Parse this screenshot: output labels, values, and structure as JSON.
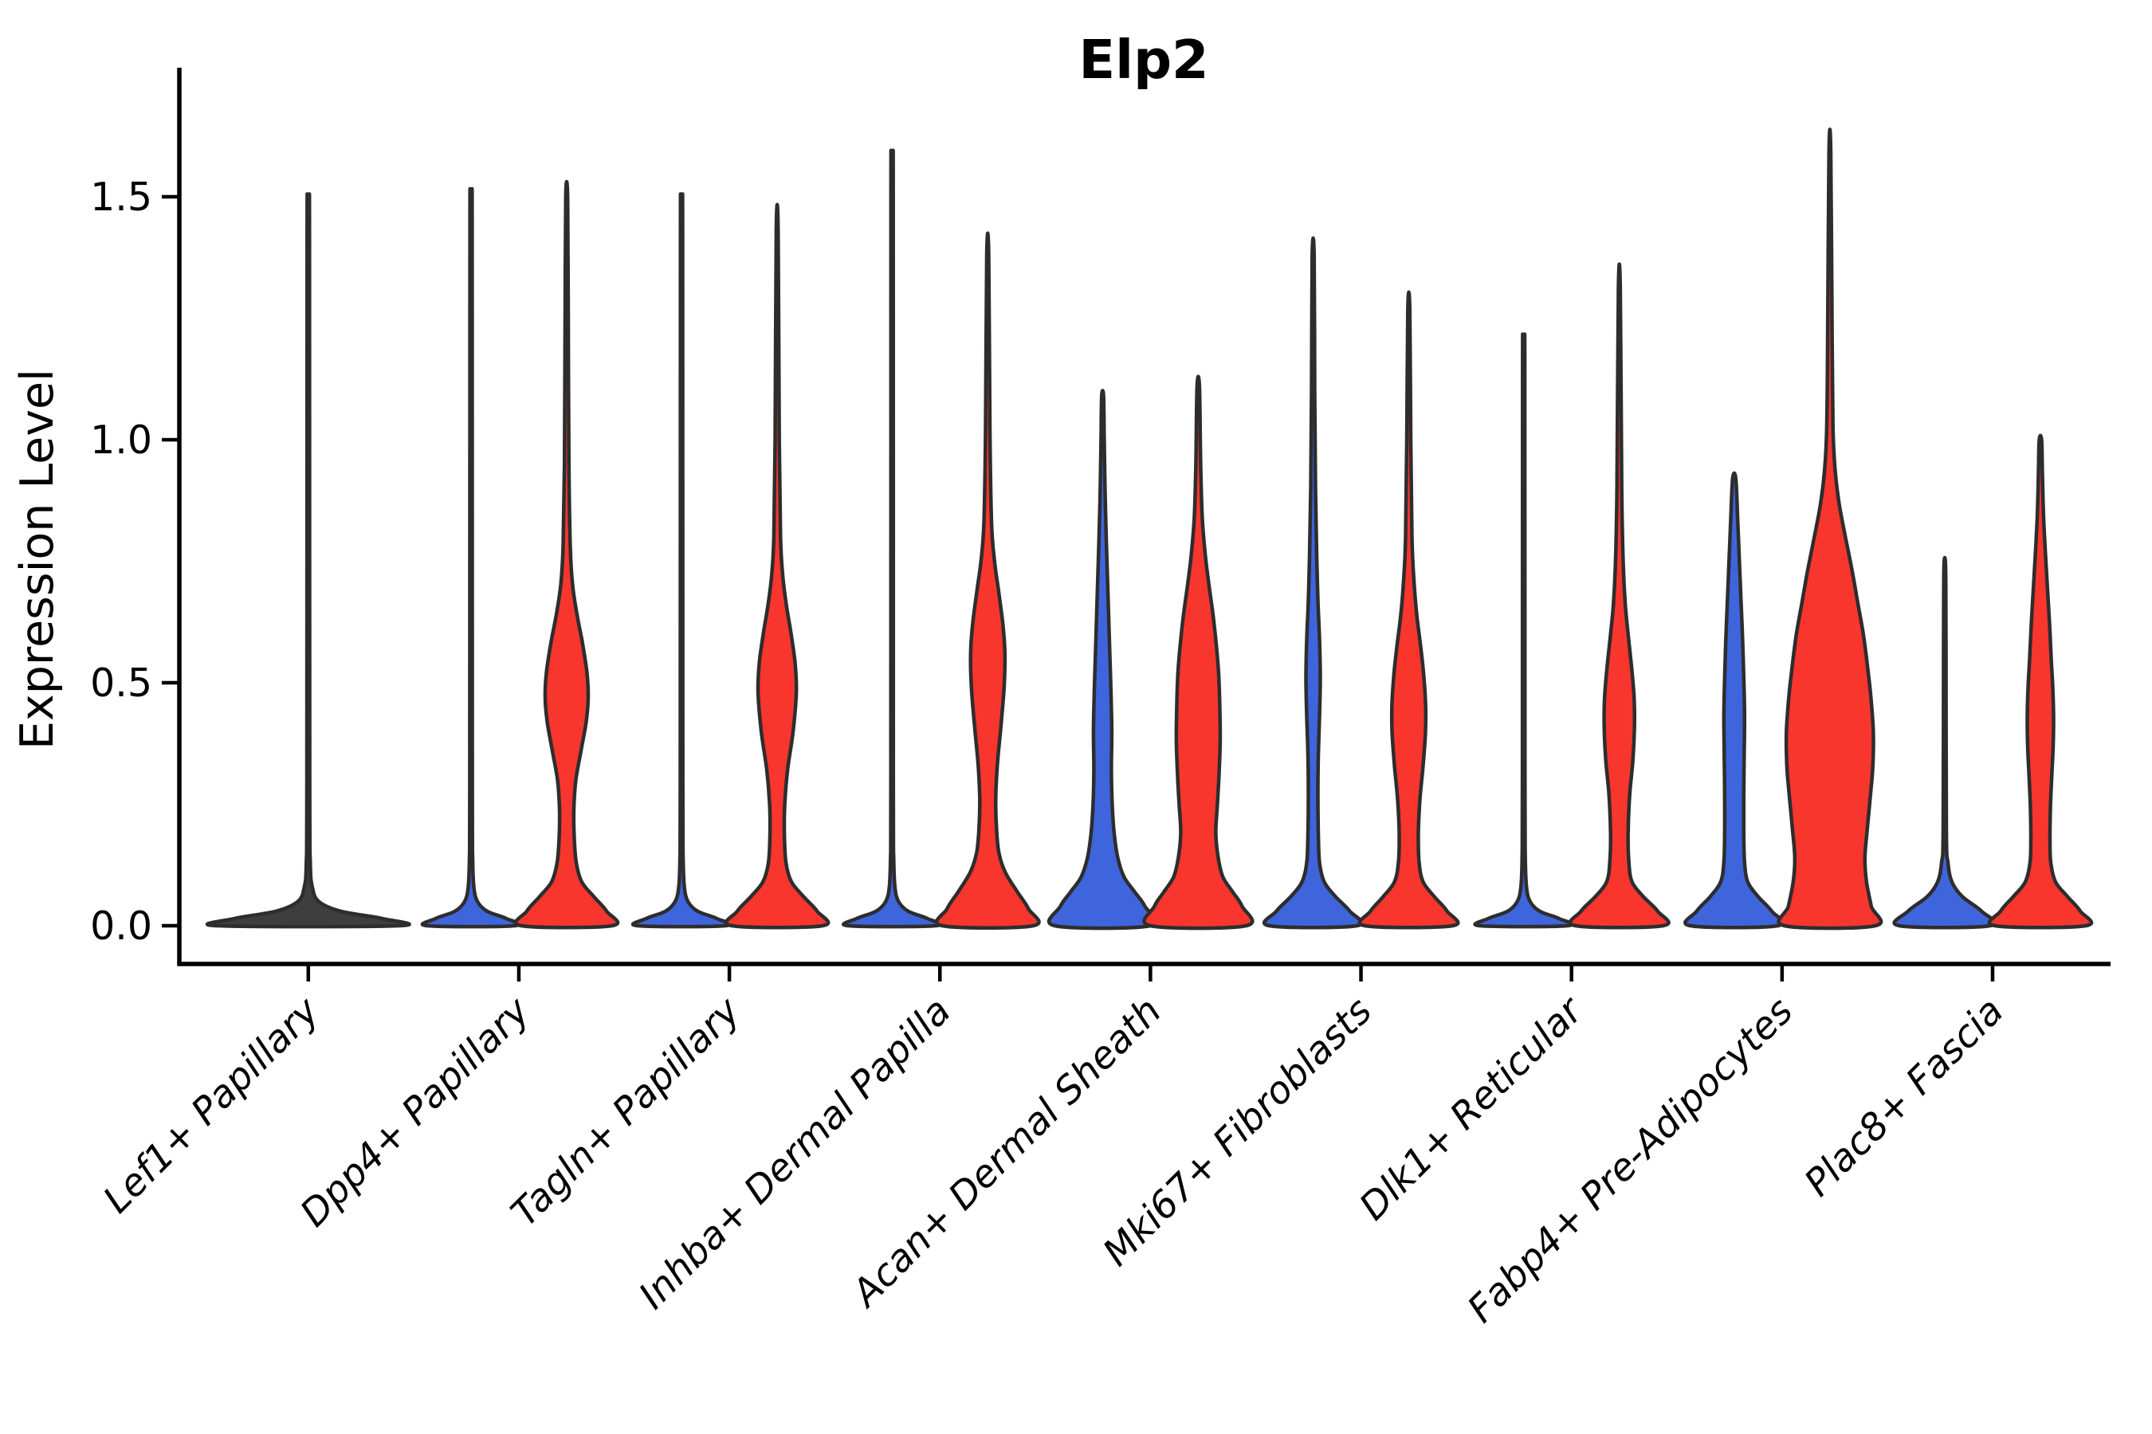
{
  "chart_data": {
    "type": "violin",
    "title": "Elp2",
    "ylabel": "Expression Level",
    "ytick_labels": [
      "0.0",
      "0.5",
      "1.0",
      "1.5"
    ],
    "ytick_values": [
      0.0,
      0.5,
      1.0,
      1.5
    ],
    "ylim": [
      -0.08,
      1.72
    ],
    "grid": "off",
    "legend": "none",
    "categories": [
      "Lef1+ Papillary",
      "Dpp4+ Papillary",
      "Tagln+ Papillary",
      "Inhba+ Dermal Papilla",
      "Acan+ Dermal Sheath",
      "Mki67+ Fibroblasts",
      "Dlk1+ Reticular",
      "Fabp4+ Pre-Adipocytes",
      "Plac8+ Fascia"
    ],
    "colors": {
      "red": "#F8362E",
      "blue": "#3F65DC",
      "neutral": "#3E3E3E",
      "stroke": "#2D2D2D",
      "axis": "#000000"
    },
    "violins": [
      {
        "category": "Lef1+ Papillary",
        "cat_index": 0,
        "side": "single",
        "color": "neutral",
        "max_expression": 1.47,
        "profile": [
          [
            0,
            114
          ],
          [
            0.015,
            92
          ],
          [
            0.03,
            40
          ],
          [
            0.05,
            13
          ],
          [
            0.08,
            5
          ],
          [
            0.13,
            2.5
          ],
          [
            0.3,
            1.8
          ],
          [
            1.4,
            1.5
          ],
          [
            1.47,
            1
          ]
        ]
      },
      {
        "category": "Dpp4+ Papillary",
        "cat_index": 1,
        "side": "left",
        "color": "blue",
        "max_expression": 1.48,
        "profile": [
          [
            0,
            55
          ],
          [
            0.015,
            44
          ],
          [
            0.03,
            20
          ],
          [
            0.05,
            8
          ],
          [
            0.08,
            3.5
          ],
          [
            0.14,
            2
          ],
          [
            0.3,
            1.6
          ],
          [
            1.41,
            1.4
          ],
          [
            1.48,
            1
          ]
        ]
      },
      {
        "category": "Dpp4+ Papillary",
        "cat_index": 1,
        "side": "right",
        "color": "red",
        "max_expression": 1.5,
        "profile": [
          [
            0,
            57
          ],
          [
            0.03,
            50
          ],
          [
            0.06,
            34
          ],
          [
            0.09,
            19
          ],
          [
            0.13,
            12
          ],
          [
            0.18,
            9.5
          ],
          [
            0.24,
            9
          ],
          [
            0.3,
            11.5
          ],
          [
            0.36,
            18
          ],
          [
            0.42,
            24.5
          ],
          [
            0.47,
            27
          ],
          [
            0.52,
            25.5
          ],
          [
            0.58,
            20
          ],
          [
            0.64,
            13
          ],
          [
            0.7,
            7.5
          ],
          [
            0.78,
            4.5
          ],
          [
            0.95,
            2.8
          ],
          [
            1.25,
            2
          ],
          [
            1.5,
            1.2
          ]
        ]
      },
      {
        "category": "Tagln+ Papillary",
        "cat_index": 2,
        "side": "left",
        "color": "blue",
        "max_expression": 1.47,
        "profile": [
          [
            0,
            55
          ],
          [
            0.015,
            44
          ],
          [
            0.03,
            20
          ],
          [
            0.05,
            8
          ],
          [
            0.08,
            3.5
          ],
          [
            0.14,
            2
          ],
          [
            0.3,
            1.6
          ],
          [
            1.4,
            1.4
          ],
          [
            1.47,
            1
          ]
        ]
      },
      {
        "category": "Tagln+ Papillary",
        "cat_index": 2,
        "side": "right",
        "color": "red",
        "max_expression": 1.43,
        "profile": [
          [
            0,
            57
          ],
          [
            0.03,
            50
          ],
          [
            0.06,
            33
          ],
          [
            0.09,
            18
          ],
          [
            0.13,
            11
          ],
          [
            0.19,
            9
          ],
          [
            0.25,
            9.5
          ],
          [
            0.32,
            13
          ],
          [
            0.4,
            20
          ],
          [
            0.48,
            24
          ],
          [
            0.54,
            22.5
          ],
          [
            0.6,
            17.5
          ],
          [
            0.66,
            11.5
          ],
          [
            0.72,
            7
          ],
          [
            0.8,
            4.2
          ],
          [
            1.0,
            2.6
          ],
          [
            1.43,
            1.2
          ]
        ]
      },
      {
        "category": "Inhba+ Dermal Papilla",
        "cat_index": 3,
        "side": "left",
        "color": "blue",
        "max_expression": 1.56,
        "profile": [
          [
            0,
            55
          ],
          [
            0.015,
            44
          ],
          [
            0.03,
            20
          ],
          [
            0.05,
            8
          ],
          [
            0.08,
            3.5
          ],
          [
            0.14,
            2
          ],
          [
            0.3,
            1.6
          ],
          [
            1.48,
            1.4
          ],
          [
            1.56,
            1
          ]
        ]
      },
      {
        "category": "Inhba+ Dermal Papilla",
        "cat_index": 3,
        "side": "right",
        "color": "red",
        "max_expression": 1.38,
        "profile": [
          [
            0,
            57
          ],
          [
            0.035,
            51
          ],
          [
            0.07,
            37
          ],
          [
            0.11,
            22
          ],
          [
            0.15,
            14
          ],
          [
            0.2,
            11
          ],
          [
            0.26,
            10
          ],
          [
            0.33,
            12
          ],
          [
            0.41,
            16.5
          ],
          [
            0.49,
            20.5
          ],
          [
            0.56,
            21.5
          ],
          [
            0.62,
            19
          ],
          [
            0.69,
            13.5
          ],
          [
            0.75,
            8.5
          ],
          [
            0.83,
            4.8
          ],
          [
            1.02,
            2.8
          ],
          [
            1.38,
            1.2
          ]
        ]
      },
      {
        "category": "Acan+ Dermal Sheath",
        "cat_index": 4,
        "side": "left",
        "color": "blue",
        "max_expression": 1.09,
        "profile": [
          [
            0,
            60
          ],
          [
            0.04,
            53
          ],
          [
            0.07,
            40
          ],
          [
            0.1,
            27
          ],
          [
            0.14,
            19
          ],
          [
            0.19,
            14.5
          ],
          [
            0.25,
            12
          ],
          [
            0.32,
            11
          ],
          [
            0.4,
            11.5
          ],
          [
            0.48,
            10.5
          ],
          [
            0.56,
            9
          ],
          [
            0.64,
            7.5
          ],
          [
            0.72,
            6
          ],
          [
            0.8,
            4.5
          ],
          [
            0.9,
            3
          ],
          [
            1.0,
            2
          ],
          [
            1.09,
            1.2
          ]
        ]
      },
      {
        "category": "Acan+ Dermal Sheath",
        "cat_index": 4,
        "side": "right",
        "color": "red",
        "max_expression": 1.11,
        "profile": [
          [
            0,
            60
          ],
          [
            0.04,
            55
          ],
          [
            0.07,
            43
          ],
          [
            0.1,
            31
          ],
          [
            0.14,
            25
          ],
          [
            0.19,
            22
          ],
          [
            0.25,
            24
          ],
          [
            0.31,
            26
          ],
          [
            0.38,
            27.5
          ],
          [
            0.45,
            27
          ],
          [
            0.52,
            25.5
          ],
          [
            0.58,
            22.5
          ],
          [
            0.64,
            18.5
          ],
          [
            0.7,
            13.5
          ],
          [
            0.76,
            9
          ],
          [
            0.84,
            5
          ],
          [
            0.95,
            3
          ],
          [
            1.11,
            1.5
          ]
        ]
      },
      {
        "category": "Mki67+ Fibroblasts",
        "cat_index": 5,
        "side": "left",
        "color": "blue",
        "max_expression": 1.38,
        "profile": [
          [
            0,
            55
          ],
          [
            0.03,
            46
          ],
          [
            0.06,
            28
          ],
          [
            0.09,
            14
          ],
          [
            0.13,
            8
          ],
          [
            0.19,
            6.5
          ],
          [
            0.27,
            6
          ],
          [
            0.35,
            6.5
          ],
          [
            0.43,
            8
          ],
          [
            0.51,
            9
          ],
          [
            0.59,
            8
          ],
          [
            0.67,
            6
          ],
          [
            0.76,
            4.5
          ],
          [
            0.9,
            3
          ],
          [
            1.1,
            2
          ],
          [
            1.38,
            1.2
          ]
        ]
      },
      {
        "category": "Mki67+ Fibroblasts",
        "cat_index": 5,
        "side": "right",
        "color": "red",
        "max_expression": 1.27,
        "profile": [
          [
            0,
            55
          ],
          [
            0.03,
            48
          ],
          [
            0.06,
            32
          ],
          [
            0.09,
            18
          ],
          [
            0.13,
            13
          ],
          [
            0.19,
            12
          ],
          [
            0.26,
            14
          ],
          [
            0.33,
            18
          ],
          [
            0.4,
            21
          ],
          [
            0.46,
            21
          ],
          [
            0.52,
            18.5
          ],
          [
            0.58,
            14.5
          ],
          [
            0.64,
            10
          ],
          [
            0.71,
            6.5
          ],
          [
            0.8,
            4
          ],
          [
            1.0,
            2.5
          ],
          [
            1.27,
            1.2
          ]
        ]
      },
      {
        "category": "Dlk1+ Reticular",
        "cat_index": 6,
        "side": "left",
        "color": "blue",
        "max_expression": 1.2,
        "profile": [
          [
            0,
            55
          ],
          [
            0.015,
            44
          ],
          [
            0.03,
            20
          ],
          [
            0.05,
            8
          ],
          [
            0.08,
            3.5
          ],
          [
            0.14,
            2
          ],
          [
            0.3,
            1.6
          ],
          [
            1.13,
            1.4
          ],
          [
            1.2,
            1
          ]
        ]
      },
      {
        "category": "Dlk1+ Reticular",
        "cat_index": 6,
        "side": "right",
        "color": "red",
        "max_expression": 1.31,
        "profile": [
          [
            0,
            55
          ],
          [
            0.03,
            48
          ],
          [
            0.06,
            30
          ],
          [
            0.09,
            16
          ],
          [
            0.13,
            12
          ],
          [
            0.19,
            11
          ],
          [
            0.27,
            13
          ],
          [
            0.34,
            17
          ],
          [
            0.41,
            19
          ],
          [
            0.47,
            18.5
          ],
          [
            0.53,
            15.5
          ],
          [
            0.6,
            11
          ],
          [
            0.66,
            7.5
          ],
          [
            0.74,
            5
          ],
          [
            0.9,
            3
          ],
          [
            1.31,
            1.2
          ]
        ]
      },
      {
        "category": "Fabp4+ Pre-Adipocytes",
        "cat_index": 7,
        "side": "left",
        "color": "blue",
        "max_expression": 0.92,
        "profile": [
          [
            0,
            55
          ],
          [
            0.03,
            47
          ],
          [
            0.06,
            30
          ],
          [
            0.09,
            17
          ],
          [
            0.13,
            13
          ],
          [
            0.19,
            12
          ],
          [
            0.27,
            12
          ],
          [
            0.35,
            12.5
          ],
          [
            0.43,
            13
          ],
          [
            0.51,
            12
          ],
          [
            0.59,
            10.5
          ],
          [
            0.67,
            8.5
          ],
          [
            0.75,
            6.5
          ],
          [
            0.83,
            4.5
          ],
          [
            0.92,
            2
          ]
        ]
      },
      {
        "category": "Fabp4+ Pre-Adipocytes",
        "cat_index": 7,
        "side": "right",
        "color": "red",
        "max_expression": 1.59,
        "profile": [
          [
            0,
            57
          ],
          [
            0.04,
            52
          ],
          [
            0.09,
            46
          ],
          [
            0.14,
            44
          ],
          [
            0.2,
            47
          ],
          [
            0.27,
            51
          ],
          [
            0.33,
            54
          ],
          [
            0.4,
            54.5
          ],
          [
            0.47,
            51.5
          ],
          [
            0.53,
            47.5
          ],
          [
            0.6,
            42
          ],
          [
            0.66,
            35.5
          ],
          [
            0.73,
            28
          ],
          [
            0.8,
            19.5
          ],
          [
            0.87,
            11.5
          ],
          [
            0.94,
            6.5
          ],
          [
            1.02,
            4
          ],
          [
            1.2,
            2.8
          ],
          [
            1.59,
            1.2
          ]
        ]
      },
      {
        "category": "Plac8+ Fascia",
        "cat_index": 8,
        "side": "left",
        "color": "blue",
        "max_expression": 0.74,
        "profile": [
          [
            0,
            57
          ],
          [
            0.03,
            46
          ],
          [
            0.06,
            22
          ],
          [
            0.09,
            9
          ],
          [
            0.13,
            4
          ],
          [
            0.2,
            2
          ],
          [
            0.6,
            1.5
          ],
          [
            0.74,
            1
          ]
        ]
      },
      {
        "category": "Plac8+ Fascia",
        "cat_index": 8,
        "side": "right",
        "color": "red",
        "max_expression": 1.0,
        "profile": [
          [
            0,
            57
          ],
          [
            0.03,
            50
          ],
          [
            0.06,
            34
          ],
          [
            0.09,
            19
          ],
          [
            0.13,
            13
          ],
          [
            0.18,
            12
          ],
          [
            0.24,
            12.5
          ],
          [
            0.3,
            14
          ],
          [
            0.37,
            16
          ],
          [
            0.43,
            16.5
          ],
          [
            0.49,
            15.5
          ],
          [
            0.55,
            13.5
          ],
          [
            0.62,
            11.5
          ],
          [
            0.69,
            9
          ],
          [
            0.76,
            6.5
          ],
          [
            0.84,
            4
          ],
          [
            0.93,
            2.5
          ],
          [
            1.0,
            1.5
          ]
        ]
      }
    ]
  }
}
